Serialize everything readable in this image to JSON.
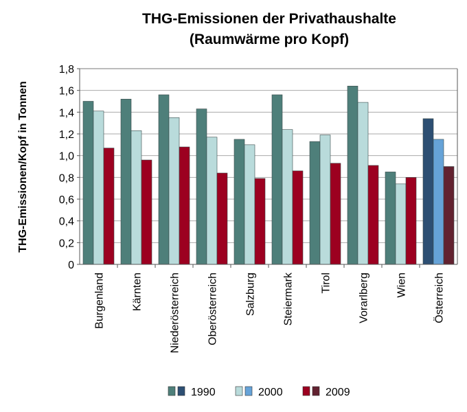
{
  "chart_data": {
    "type": "bar",
    "title": [
      "THG-Emissionen der Privathaushalte",
      "(Raumwärme pro Kopf)"
    ],
    "xlabel": "",
    "ylabel": "THG-Emissionen/Kopf in Tonnen",
    "ylim": [
      0,
      1.8
    ],
    "yticks": [
      "0",
      "0,2",
      "0,4",
      "0,6",
      "0,8",
      "1,0",
      "1,2",
      "1,4",
      "1,6",
      "1,8"
    ],
    "grid": true,
    "legend_position": "bottom",
    "categories": [
      "Burgenland",
      "Kärnten",
      "Niederösterreich",
      "Oberösterreich",
      "Salzburg",
      "Steiermark",
      "Tirol",
      "Vorarlberg",
      "Wien",
      "Österreich"
    ],
    "series": [
      {
        "name": "1990",
        "color": "#4e7f7a",
        "highlight_color": "#2d4f73",
        "values": [
          1.5,
          1.52,
          1.56,
          1.43,
          1.15,
          1.56,
          1.13,
          1.64,
          0.85,
          1.34
        ]
      },
      {
        "name": "2000",
        "color": "#b9dbdb",
        "highlight_color": "#66a3d8",
        "values": [
          1.41,
          1.23,
          1.35,
          1.17,
          1.1,
          1.24,
          1.19,
          1.49,
          0.74,
          1.15
        ]
      },
      {
        "name": "2009",
        "color": "#9c0020",
        "highlight_color": "#622230",
        "values": [
          1.07,
          0.96,
          1.08,
          0.84,
          0.79,
          0.86,
          0.93,
          0.91,
          0.8,
          0.9
        ]
      }
    ]
  }
}
